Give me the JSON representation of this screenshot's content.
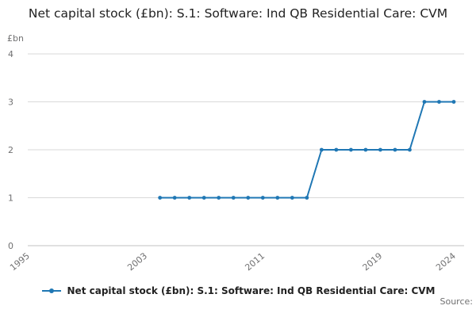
{
  "legend": {
    "label": "Net capital stock (£bn): S.1: Software: Ind QB Residential Care: CVM"
  },
  "source_label": "Source:",
  "colors": {
    "line": "#1f77b4",
    "grid": "#d9d9d9",
    "axis_line": "#c0c0c0",
    "axis_text": "#707071",
    "title_text": "#222222"
  },
  "chart_data": {
    "type": "line",
    "title": "Net capital stock (£bn): S.1: Software: Ind QB Residential Care: CVM",
    "ylabel": "£bn",
    "xlabel": "",
    "x": [
      2004,
      2005,
      2006,
      2007,
      2008,
      2009,
      2010,
      2011,
      2012,
      2013,
      2014,
      2015,
      2016,
      2017,
      2018,
      2019,
      2020,
      2021,
      2022,
      2023,
      2024
    ],
    "values": [
      1,
      1,
      1,
      1,
      1,
      1,
      1,
      1,
      1,
      1,
      1,
      2,
      2,
      2,
      2,
      2,
      2,
      2,
      3,
      3,
      3
    ],
    "xlim": [
      1995,
      2024
    ],
    "ylim": [
      0,
      4
    ],
    "yticks": [
      0,
      1,
      2,
      3,
      4
    ],
    "xticks": [
      1995,
      2003,
      2011,
      2019,
      2024
    ],
    "grid": true,
    "legend_position": "bottom",
    "marker": "circle"
  }
}
